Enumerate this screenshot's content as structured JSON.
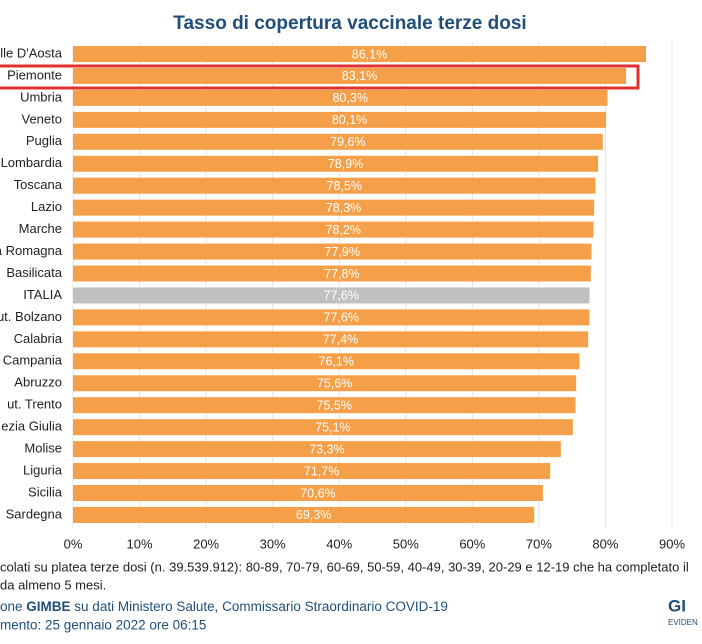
{
  "chart_data": {
    "type": "bar",
    "orientation": "horizontal",
    "title": "Tasso di copertura vaccinale terze dosi",
    "categories": [
      "lle D'Aosta",
      "Piemonte",
      "Umbria",
      "Veneto",
      "Puglia",
      "Lombardia",
      "Toscana",
      "Lazio",
      "Marche",
      "a Romagna",
      "Basilicata",
      "ITALIA",
      "ut. Bolzano",
      "Calabria",
      "Campania",
      "Abruzzo",
      "ut. Trento",
      "ezia Giulia",
      "Molise",
      "Liguria",
      "Sicilia",
      "Sardegna"
    ],
    "values": [
      86.1,
      83.1,
      80.3,
      80.1,
      79.6,
      78.9,
      78.5,
      78.3,
      78.2,
      77.9,
      77.8,
      77.6,
      77.6,
      77.4,
      76.1,
      75.6,
      75.5,
      75.1,
      73.3,
      71.7,
      70.6,
      69.3
    ],
    "value_labels": [
      "86,1%",
      "83,1%",
      "80,3%",
      "80,1%",
      "79,6%",
      "78,9%",
      "78,5%",
      "78,3%",
      "78,2%",
      "77,9%",
      "77,8%",
      "77,6%",
      "77,6%",
      "77,4%",
      "76,1%",
      "75,6%",
      "75,5%",
      "75,1%",
      "73,3%",
      "71,7%",
      "70,6%",
      "69,3%"
    ],
    "colors": [
      "#f5a048",
      "#f5a048",
      "#f5a048",
      "#f5a048",
      "#f5a048",
      "#f5a048",
      "#f5a048",
      "#f5a048",
      "#f5a048",
      "#f5a048",
      "#f5a048",
      "#c0c0c0",
      "#f5a048",
      "#f5a048",
      "#f5a048",
      "#f5a048",
      "#f5a048",
      "#f5a048",
      "#f5a048",
      "#f5a048",
      "#f5a048",
      "#f5a048"
    ],
    "xlim": [
      0,
      90
    ],
    "xticks": [
      {
        "value": 0,
        "label": "0%"
      },
      {
        "value": 10,
        "label": "10%"
      },
      {
        "value": 20,
        "label": "20%"
      },
      {
        "value": 30,
        "label": "30%"
      },
      {
        "value": 40,
        "label": "40%"
      },
      {
        "value": 50,
        "label": "50%"
      },
      {
        "value": 60,
        "label": "60%"
      },
      {
        "value": 70,
        "label": "70%"
      },
      {
        "value": 80,
        "label": "80%"
      },
      {
        "value": 90,
        "label": "90%"
      }
    ],
    "grid": true,
    "footnote": [
      "colati su platea terze dosi (n. 39.539.912): 80-89, 70-79, 60-69, 50-59, 40-49, 30-39, 20-29 e 12-19 che ha completato il",
      "da almeno 5 mesi."
    ],
    "source": [
      "one ",
      "GIMBE",
      " su dati Ministero Salute, Commissario Straordinario COVID-19"
    ],
    "updated": "mento: 25 gennaio 2022 ore 06:15",
    "logo": [
      "GI",
      "EVIDEN"
    ]
  }
}
